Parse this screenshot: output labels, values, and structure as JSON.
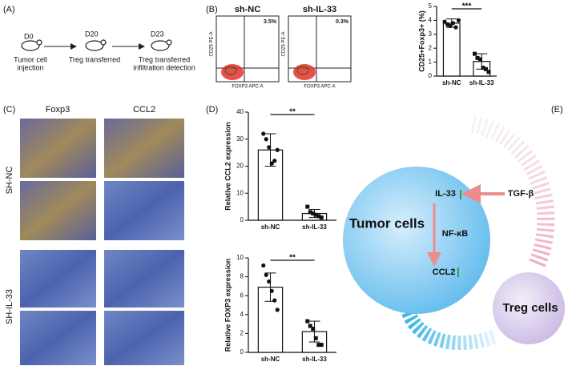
{
  "panel_a": {
    "label": "(A)",
    "steps": [
      {
        "day": "D0",
        "text": [
          "Tumor cell",
          "injection"
        ]
      },
      {
        "day": "D20",
        "text": [
          "Treg transferred"
        ]
      },
      {
        "day": "D23",
        "text": [
          "Treg transferred",
          "infiltration detection"
        ]
      }
    ]
  },
  "panel_b": {
    "label": "(B)",
    "plots": [
      {
        "title": "sh-NC",
        "percent": "3.5%",
        "ylabel": "CD25 PE-A",
        "xlabel": "FOXP3 APC-A"
      },
      {
        "title": "sh-IL-33",
        "percent": "0.3%",
        "ylabel": "CD25 PE-A",
        "xlabel": "FOXP3 APC-A"
      }
    ]
  },
  "panel_c": {
    "label": "(C)",
    "columns": [
      "Foxp3",
      "CCL2"
    ],
    "rows": [
      "SH-NC",
      "SH-IL-33"
    ]
  },
  "panel_d": {
    "label": "(D)"
  },
  "panel_e": {
    "label": "(E)",
    "tumor": "Tumor cells",
    "il33": "IL-33",
    "nfkb": "NF-κB",
    "ccl2": "CCL2",
    "tgfb": "TGF-β",
    "treg": "Treg cells"
  },
  "chart_data": [
    {
      "type": "bar",
      "ylabel": "CD25+Foxp3+ (%)",
      "categories": [
        "sh-NC",
        "sh-IL-33"
      ],
      "values": [
        3.8,
        1.05
      ],
      "errors": [
        0.3,
        0.55
      ],
      "points": [
        [
          3.9,
          3.7,
          3.6,
          3.8,
          3.5,
          4.0
        ],
        [
          1.6,
          1.3,
          1.2,
          0.6,
          0.5,
          0.3
        ]
      ],
      "significance": "***",
      "color": "#ffffff",
      "ylim": [
        0,
        5
      ],
      "yticks": [
        0,
        1,
        2,
        3,
        4,
        5
      ]
    },
    {
      "type": "bar",
      "ylabel": "Relative CCL2 expression",
      "categories": [
        "sh-NC",
        "sh-IL-33"
      ],
      "values": [
        26,
        2.5
      ],
      "errors": [
        6,
        1.5
      ],
      "points": [
        [
          32,
          30,
          27,
          21,
          22,
          26
        ],
        [
          5,
          3,
          2.5,
          2,
          1.5,
          1
        ]
      ],
      "significance": "**",
      "color": "#ffffff",
      "ylim": [
        0,
        40
      ],
      "yticks": [
        0,
        10,
        20,
        30,
        40
      ]
    },
    {
      "type": "bar",
      "ylabel": "Relative FOXP3 expression",
      "categories": [
        "sh-NC",
        "sh-IL-33"
      ],
      "values": [
        6.9,
        2.2
      ],
      "errors": [
        1.5,
        1.1
      ],
      "points": [
        [
          9.2,
          8.2,
          7.5,
          6.5,
          5.5,
          4.5
        ],
        [
          3.3,
          2.8,
          2.5,
          1.5,
          0.8,
          0.8
        ]
      ],
      "significance": "**",
      "color": "#ffffff",
      "ylim": [
        0,
        10
      ],
      "yticks": [
        0,
        2,
        4,
        6,
        8,
        10
      ]
    }
  ]
}
